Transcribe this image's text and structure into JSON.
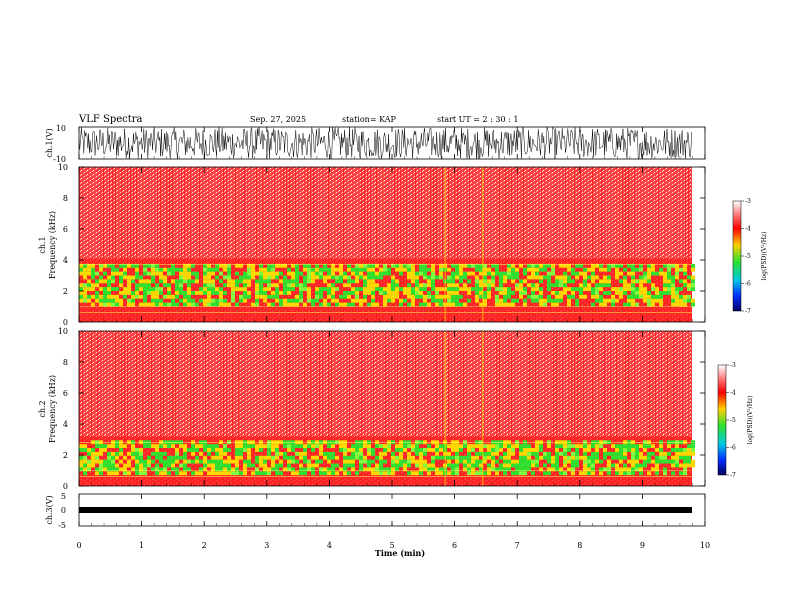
{
  "header": {
    "title": "VLF Spectra",
    "date": "Sep. 27, 2025",
    "station": "station= KAP",
    "start": "start  UT  =   2  : 30 : 1"
  },
  "colors": {
    "background": "#ffffff",
    "axis": "#000000",
    "spec_low": "#ff2020",
    "spec_mid": "#ffd800",
    "spec_band": "#30e030",
    "trace": "#000000"
  },
  "chart_data": [
    {
      "type": "line",
      "name": "ch1-waveform",
      "ylabel": "ch.1(V)",
      "ylim": [
        -10,
        10
      ],
      "yticks": [
        "10",
        "-10"
      ],
      "xlim": [
        0,
        10
      ],
      "description_values": {
        "approx_min": -10,
        "approx_max": 10
      }
    },
    {
      "type": "heatmap",
      "name": "ch1-spectrogram",
      "ylabel_channel": "ch.1",
      "ylabel": "Frequency  (kHz)",
      "ylim": [
        0,
        10
      ],
      "yticks": [
        "0",
        "2",
        "4",
        "6",
        "8",
        "10"
      ],
      "xlim": [
        0,
        10
      ],
      "colorbar": {
        "label": "log(PSD)(V²/Hz)",
        "range": [
          -7,
          -3
        ],
        "ticks": [
          "-3",
          "-4",
          "-5",
          "-6",
          "-7"
        ]
      },
      "enhanced_band_khz": [
        1,
        3.7
      ]
    },
    {
      "type": "heatmap",
      "name": "ch2-spectrogram",
      "ylabel_channel": "ch.2",
      "ylabel": "Frequency  (kHz)",
      "ylim": [
        0,
        10
      ],
      "yticks": [
        "0",
        "2",
        "4",
        "6",
        "8",
        "10"
      ],
      "xlim": [
        0,
        10
      ],
      "colorbar": {
        "label": "log(PSD)(V²/Hz)",
        "range": [
          -7,
          -3
        ],
        "ticks": [
          "-3",
          "-4",
          "-5",
          "-6",
          "-7"
        ]
      },
      "enhanced_band_khz": [
        0.7,
        2.8
      ]
    },
    {
      "type": "line",
      "name": "ch3-waveform",
      "ylabel": "ch.3(V)",
      "ylim": [
        -5,
        5
      ],
      "yticks": [
        "5",
        "0",
        "-5"
      ],
      "xlim": [
        0,
        10
      ],
      "xlabel": "Time  (min)",
      "xticks": [
        "0",
        "1",
        "2",
        "3",
        "4",
        "5",
        "6",
        "7",
        "8",
        "9",
        "10"
      ],
      "description_values": {
        "approx_level": -1
      }
    }
  ]
}
